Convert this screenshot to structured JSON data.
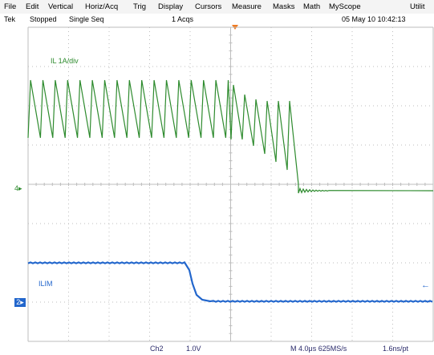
{
  "menu": {
    "file": "File",
    "edit": "Edit",
    "vertical": "Vertical",
    "horiz": "Horiz/Acq",
    "trig": "Trig",
    "display": "Display",
    "cursors": "Cursors",
    "measure": "Measure",
    "masks": "Masks",
    "math": "Math",
    "myscope": "MyScope",
    "utilities": "Utilit"
  },
  "status": {
    "brand": "Tek",
    "state": "Stopped",
    "mode": "Single Seq",
    "acqs": "1 Acqs",
    "datetime": "05 May 10 10:42:13"
  },
  "channels": {
    "ch4_marker": "4",
    "ch2_marker": "2",
    "ch4_label": "IL 1A/div",
    "ch2_label": "ILIM"
  },
  "bottom": {
    "channel": "Ch2",
    "scale": "1.0V",
    "timebase": "M 4.0μs 625MS/s",
    "resolution": "1.6ns/pt"
  },
  "colors": {
    "grid": "#bdbdbd",
    "ch4": "#2e8b2e",
    "ch2": "#2266cc",
    "trigger": "#f07a20"
  }
}
